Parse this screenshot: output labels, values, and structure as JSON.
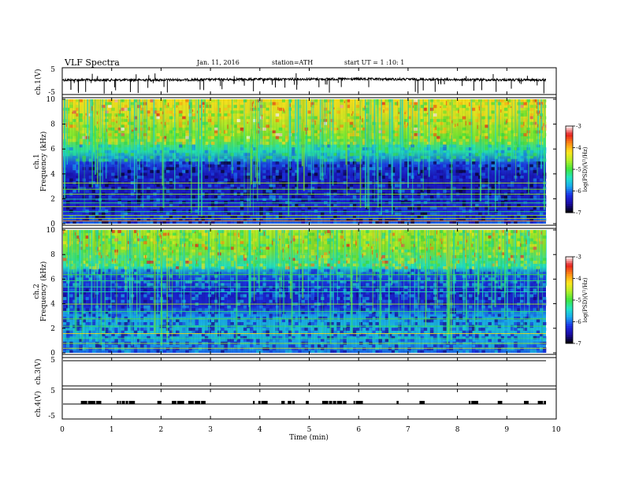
{
  "header": {
    "title": "VLF Spectra",
    "date": "Jan. 11, 2016",
    "station": "station=ATH",
    "start": "start UT =  1 :10: 1"
  },
  "colors": {
    "spectrogram_scale": [
      "#000000",
      "#1a0aa0",
      "#1c2ee6",
      "#1aa8f0",
      "#22e6c8",
      "#3ee63e",
      "#b4f028",
      "#ffe61e",
      "#ff8a14",
      "#e61e1e",
      "#ffffff"
    ],
    "trace": "#000000"
  },
  "chart_data": [
    {
      "panel": "ch1-waveform",
      "type": "line",
      "ylabel": "ch.1(V)",
      "yticks": [
        "5",
        "-5"
      ],
      "ylim": [
        -5,
        5
      ],
      "description_level": "noisy trace near 0 V with sparse negative spikes to about -4 V"
    },
    {
      "panel": "ch1-spectrogram",
      "type": "heatmap",
      "ylabel": "ch.1",
      "ylabel2": "Frequency (kHz)",
      "yticks": [
        "0",
        "2",
        "4",
        "6",
        "8",
        "10"
      ],
      "ylim": [
        0,
        10
      ],
      "colorbar": {
        "label": "log(PSD)(V²/Hz)",
        "ticks": [
          "-3",
          "-4",
          "-5",
          "-6",
          "-7"
        ],
        "range": [
          -7,
          -3
        ]
      }
    },
    {
      "panel": "ch2-spectrogram",
      "type": "heatmap",
      "ylabel": "ch.2",
      "ylabel2": "Frequency (kHz)",
      "yticks": [
        "0",
        "2",
        "4",
        "6",
        "8",
        "10"
      ],
      "ylim": [
        0,
        10
      ],
      "colorbar": {
        "label": "log(PSD)(V²/Hz)",
        "ticks": [
          "-3",
          "-4",
          "-5",
          "-6",
          "-7"
        ],
        "range": [
          -7,
          -3
        ]
      }
    },
    {
      "panel": "ch3-waveform",
      "type": "line",
      "ylabel": "ch.3(V)",
      "yticks": [
        "5"
      ],
      "ylim": [
        -5,
        5
      ],
      "description_level": "flat trace at 0 V"
    },
    {
      "panel": "ch4-waveform",
      "type": "line",
      "ylabel": "ch.4(V)",
      "yticks": [
        "5",
        "-5"
      ],
      "ylim": [
        -5,
        5
      ],
      "description_level": "on/off pulses between 0 V and about 1 V"
    }
  ],
  "xaxis": {
    "label": "Time (min)",
    "ticks": [
      "0",
      "1",
      "2",
      "3",
      "4",
      "5",
      "6",
      "7",
      "8",
      "9",
      "10"
    ],
    "xlim": [
      0,
      10
    ]
  }
}
